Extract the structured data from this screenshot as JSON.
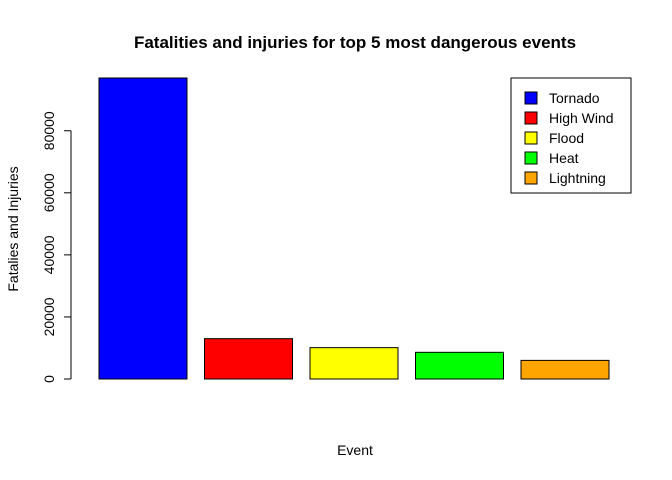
{
  "chart_data": {
    "type": "bar",
    "title": "Fatalities and injuries for top 5 most dangerous events",
    "xlabel": "Event",
    "ylabel": "Fatalies and Injuries",
    "categories": [
      "Tornado",
      "High Wind",
      "Flood",
      "Heat",
      "Lightning"
    ],
    "values": [
      97000,
      13000,
      10100,
      8600,
      6000
    ],
    "colors": [
      "#0000FF",
      "#FF0000",
      "#FFFF00",
      "#00FF00",
      "#FFA500"
    ],
    "yticks": [
      0,
      20000,
      40000,
      60000,
      80000
    ],
    "ytick_labels": [
      "0",
      "20000",
      "40000",
      "60000",
      "80000"
    ],
    "ylim": [
      0,
      97000
    ],
    "grid": false,
    "legend_position": "top-right"
  }
}
